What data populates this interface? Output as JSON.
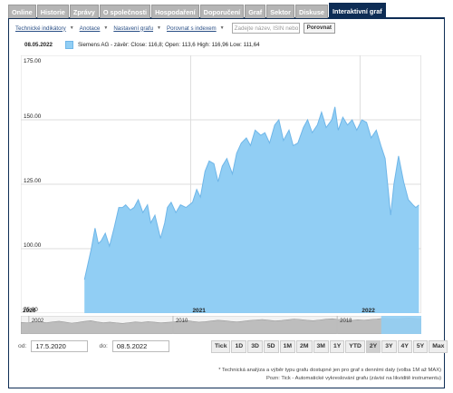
{
  "tabs": [
    {
      "label": "Online",
      "active": false
    },
    {
      "label": "Historie",
      "active": false
    },
    {
      "label": "Zprávy",
      "active": false
    },
    {
      "label": "O společnosti",
      "active": false
    },
    {
      "label": "Hospodaření",
      "active": false
    },
    {
      "label": "Doporučení",
      "active": false
    },
    {
      "label": "Graf",
      "active": false
    },
    {
      "label": "Sektor",
      "active": false
    },
    {
      "label": "Diskuse",
      "active": false
    },
    {
      "label": "Interaktivní graf",
      "active": true
    }
  ],
  "toolbar": {
    "items": [
      "Technické indikátory",
      "Anotace",
      "Nastavení grafu",
      "Porovnat s indexem"
    ],
    "search_placeholder": "Zadejte název, ISIN nebo",
    "compare_button": "Porovnat"
  },
  "legend": {
    "date": "08.05.2022",
    "text": "Siemens AG - závěr: Close: 116,8; Open: 113,6 High: 116,96 Low: 111,64"
  },
  "colors": {
    "fill": "#91cef4",
    "stroke": "#6fb6e8",
    "active_tab": "#0e2d55"
  },
  "chart_data": {
    "type": "area",
    "ylim": [
      75,
      175
    ],
    "y_ticks": [
      "175.00",
      "150.00",
      "125.00",
      "100.00",
      "75.00"
    ],
    "x_ticks": [
      "2020",
      "2021",
      "2022"
    ],
    "grid": true,
    "legend_position": "top-left",
    "series": [
      {
        "name": "Siemens AG - závěr",
        "x": [
          "2020-05-17",
          "2020-06-01",
          "2020-06-09",
          "2020-06-16",
          "2020-06-22",
          "2020-07-01",
          "2020-07-10",
          "2020-07-20",
          "2020-07-30",
          "2020-08-07",
          "2020-08-14",
          "2020-08-24",
          "2020-09-01",
          "2020-09-10",
          "2020-09-20",
          "2020-09-30",
          "2020-10-07",
          "2020-10-16",
          "2020-10-28",
          "2020-11-06",
          "2020-11-12",
          "2020-11-20",
          "2020-11-30",
          "2020-12-10",
          "2020-12-22",
          "2021-01-05",
          "2021-01-14",
          "2021-01-22",
          "2021-02-01",
          "2021-02-10",
          "2021-02-20",
          "2021-03-01",
          "2021-03-10",
          "2021-03-20",
          "2021-04-01",
          "2021-04-10",
          "2021-04-20",
          "2021-05-01",
          "2021-05-10",
          "2021-05-20",
          "2021-06-01",
          "2021-06-10",
          "2021-06-20",
          "2021-07-01",
          "2021-07-10",
          "2021-07-20",
          "2021-08-01",
          "2021-08-10",
          "2021-08-20",
          "2021-09-01",
          "2021-09-10",
          "2021-09-20",
          "2021-10-01",
          "2021-10-10",
          "2021-10-20",
          "2021-11-01",
          "2021-11-08",
          "2021-11-15",
          "2021-11-25",
          "2021-12-05",
          "2021-12-15",
          "2021-12-25",
          "2022-01-05",
          "2022-01-15",
          "2022-01-25",
          "2022-02-05",
          "2022-02-15",
          "2022-02-24",
          "2022-03-01",
          "2022-03-08",
          "2022-03-15",
          "2022-03-25",
          "2022-04-05",
          "2022-04-15",
          "2022-04-25",
          "2022-05-01",
          "2022-05-08"
        ],
        "y": [
          88,
          100,
          108,
          102,
          103,
          106,
          101,
          108,
          116,
          116,
          117,
          115,
          116,
          119,
          114,
          117,
          110,
          113,
          104,
          110,
          116,
          118,
          114,
          117,
          116,
          118,
          123,
          120,
          130,
          134,
          133,
          126,
          132,
          135,
          129,
          137,
          141,
          143,
          140,
          146,
          144,
          145,
          141,
          148,
          150,
          142,
          146,
          140,
          141,
          147,
          150,
          145,
          148,
          153,
          147,
          150,
          155,
          146,
          151,
          148,
          150,
          146,
          150,
          149,
          143,
          146,
          140,
          135,
          126,
          113,
          125,
          136,
          126,
          119,
          117,
          116,
          117
        ]
      }
    ]
  },
  "navigator": {
    "labels": [
      "2002",
      "2010",
      "2018"
    ],
    "selected_start_fraction": 0.9,
    "history": [
      48,
      46,
      49,
      51,
      47,
      50,
      53,
      49,
      45,
      48,
      52,
      55,
      50,
      47,
      49,
      46,
      44,
      47,
      50,
      48,
      51,
      49,
      46,
      48,
      50,
      53,
      56,
      52,
      49,
      51,
      54,
      57,
      55,
      52,
      50,
      53,
      56,
      58,
      60,
      57,
      54,
      56,
      59,
      62,
      60,
      57,
      55,
      58,
      61,
      63,
      60,
      58,
      56,
      59,
      57,
      60,
      62,
      65,
      63,
      61,
      64,
      66,
      64,
      62
    ]
  },
  "range": {
    "from_label": "od:",
    "from": "17.5.2020",
    "to_label": "do:",
    "to": "08.5.2022"
  },
  "zoom_buttons": [
    {
      "label": "Tick",
      "active": false
    },
    {
      "label": "1D",
      "active": false
    },
    {
      "label": "3D",
      "active": false
    },
    {
      "label": "5D",
      "active": false
    },
    {
      "label": "1M",
      "active": false
    },
    {
      "label": "2M",
      "active": false
    },
    {
      "label": "3M",
      "active": false
    },
    {
      "label": "1Y",
      "active": false
    },
    {
      "label": "YTD",
      "active": false
    },
    {
      "label": "2Y",
      "active": true
    },
    {
      "label": "3Y",
      "active": false
    },
    {
      "label": "4Y",
      "active": false
    },
    {
      "label": "5Y",
      "active": false
    },
    {
      "label": "Max",
      "active": false
    }
  ],
  "footnotes": [
    "* Technická analýza a výběr typu grafu dostupné jen pro graf s denními daty (volba 1M až MAX)",
    "Pozn: Tick - Automatické vykreslování grafu (závisí na likviditě instrumentu)"
  ]
}
